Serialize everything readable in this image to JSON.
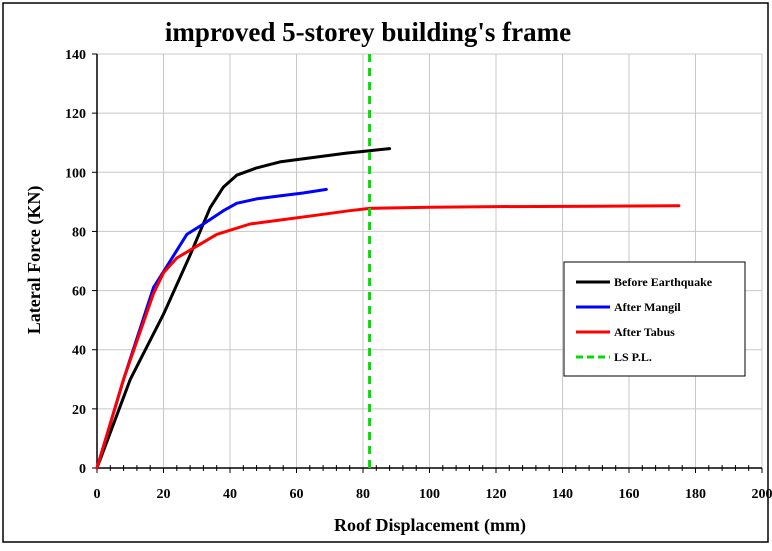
{
  "chart_data": {
    "type": "line",
    "title": "improved 5-storey building's frame",
    "xlabel": "Roof Displacement  (mm)",
    "ylabel": "Lateral Force   (KN)",
    "xlim": [
      0,
      200
    ],
    "ylim": [
      0,
      140
    ],
    "x_ticks": [
      0,
      20,
      40,
      60,
      80,
      100,
      120,
      140,
      160,
      180,
      200
    ],
    "y_ticks": [
      0,
      20,
      40,
      60,
      80,
      100,
      120,
      140
    ],
    "grid": true,
    "legend_position": "right",
    "series": [
      {
        "name": "Before Earthquake",
        "color": "#000000",
        "style": "solid",
        "points": [
          [
            0,
            0
          ],
          [
            10,
            30
          ],
          [
            20,
            52
          ],
          [
            28,
            72
          ],
          [
            34,
            88
          ],
          [
            38,
            95
          ],
          [
            42,
            99
          ],
          [
            48,
            101.5
          ],
          [
            55,
            103.5
          ],
          [
            65,
            105
          ],
          [
            75,
            106.5
          ],
          [
            82,
            107.3
          ],
          [
            88,
            108
          ]
        ]
      },
      {
        "name": "After Mangil",
        "color": "#0000ff",
        "style": "solid",
        "points": [
          [
            0,
            0
          ],
          [
            8,
            30
          ],
          [
            17,
            61
          ],
          [
            22,
            70
          ],
          [
            27,
            79
          ],
          [
            32,
            82.5
          ],
          [
            38,
            87
          ],
          [
            42,
            89.5
          ],
          [
            48,
            91
          ],
          [
            55,
            92
          ],
          [
            62,
            93
          ],
          [
            69,
            94.2
          ]
        ]
      },
      {
        "name": "After Tabus",
        "color": "#ff0000",
        "style": "solid",
        "points": [
          [
            0,
            0
          ],
          [
            8,
            30
          ],
          [
            17,
            59
          ],
          [
            20,
            66
          ],
          [
            24,
            71
          ],
          [
            30,
            75
          ],
          [
            36,
            79
          ],
          [
            46,
            82.5
          ],
          [
            56,
            84
          ],
          [
            66,
            85.5
          ],
          [
            76,
            87
          ],
          [
            82,
            87.8
          ],
          [
            100,
            88.2
          ],
          [
            120,
            88.4
          ],
          [
            150,
            88.5
          ],
          [
            175,
            88.7
          ]
        ]
      },
      {
        "name": "LS P.L.",
        "color": "#00dd00",
        "style": "dashed",
        "points": [
          [
            82,
            0
          ],
          [
            82,
            140
          ]
        ]
      }
    ]
  }
}
